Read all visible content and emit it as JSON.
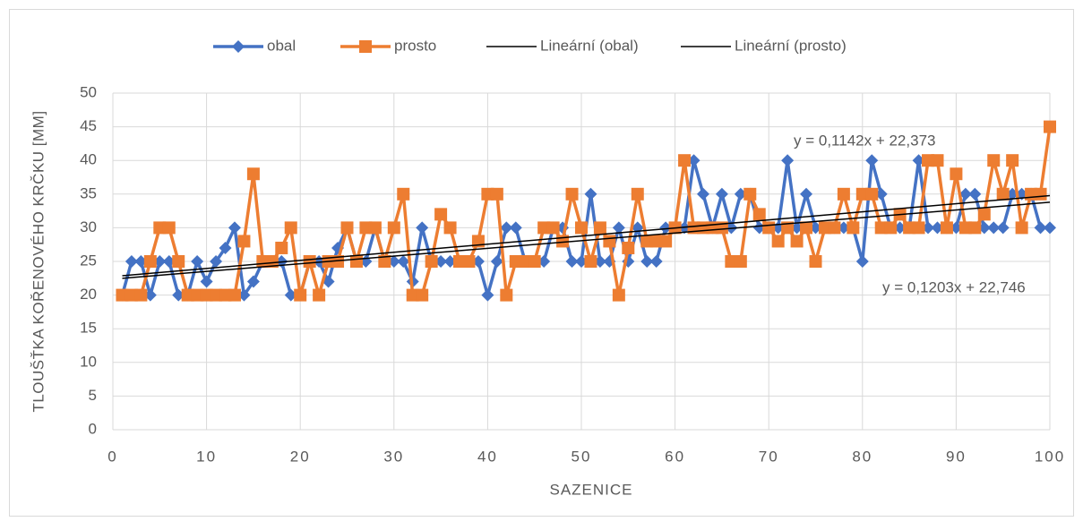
{
  "chart_data": {
    "type": "line",
    "y_label": "TLOUŠŤKA KOŘENOVÉHO KRČKU [MM]",
    "x_label": "SAZENICE",
    "x": [
      1,
      2,
      3,
      4,
      5,
      6,
      7,
      8,
      9,
      10,
      11,
      12,
      13,
      14,
      15,
      16,
      17,
      18,
      19,
      20,
      21,
      22,
      23,
      24,
      25,
      26,
      27,
      28,
      29,
      30,
      31,
      32,
      33,
      34,
      35,
      36,
      37,
      38,
      39,
      40,
      41,
      42,
      43,
      44,
      45,
      46,
      47,
      48,
      49,
      50,
      51,
      52,
      53,
      54,
      55,
      56,
      57,
      58,
      59,
      60,
      61,
      62,
      63,
      64,
      65,
      66,
      67,
      68,
      69,
      70,
      71,
      72,
      73,
      74,
      75,
      76,
      77,
      78,
      79,
      80,
      81,
      82,
      83,
      84,
      85,
      86,
      87,
      88,
      89,
      90,
      91,
      92,
      93,
      94,
      95,
      96,
      97,
      98,
      99,
      100
    ],
    "series": [
      {
        "name": "obal",
        "color": "#4472c4",
        "marker": "diamond",
        "values": [
          20,
          25,
          25,
          20,
          25,
          25,
          20,
          20,
          25,
          22,
          25,
          27,
          30,
          20,
          22,
          25,
          25,
          25,
          20,
          20,
          25,
          25,
          22,
          27,
          30,
          25,
          25,
          30,
          25,
          25,
          25,
          22,
          30,
          25,
          25,
          25,
          25,
          25,
          25,
          20,
          25,
          30,
          30,
          25,
          25,
          25,
          30,
          30,
          25,
          25,
          35,
          25,
          25,
          30,
          25,
          30,
          25,
          25,
          30,
          30,
          30,
          40,
          35,
          30,
          35,
          30,
          35,
          35,
          30,
          30,
          30,
          40,
          30,
          35,
          30,
          30,
          30,
          30,
          30,
          25,
          40,
          35,
          30,
          30,
          30,
          40,
          30,
          30,
          30,
          30,
          35,
          35,
          30,
          30,
          30,
          35,
          35,
          35,
          30,
          30
        ]
      },
      {
        "name": "prosto",
        "color": "#ed7d31",
        "marker": "square",
        "values": [
          20,
          20,
          20,
          25,
          30,
          30,
          25,
          20,
          20,
          20,
          20,
          20,
          20,
          28,
          38,
          25,
          25,
          27,
          30,
          20,
          25,
          20,
          25,
          25,
          30,
          25,
          30,
          30,
          25,
          30,
          35,
          20,
          20,
          25,
          32,
          30,
          25,
          25,
          28,
          35,
          35,
          20,
          25,
          25,
          25,
          30,
          30,
          28,
          35,
          30,
          25,
          30,
          28,
          20,
          27,
          35,
          28,
          28,
          28,
          30,
          40,
          30,
          30,
          30,
          30,
          25,
          25,
          35,
          32,
          30,
          28,
          30,
          28,
          30,
          25,
          30,
          30,
          35,
          30,
          35,
          35,
          30,
          30,
          32,
          30,
          30,
          40,
          40,
          30,
          38,
          30,
          30,
          32,
          40,
          35,
          40,
          30,
          35,
          35,
          45
        ]
      }
    ],
    "trendlines": [
      {
        "name": "Lineární (obal)",
        "color": "#000000",
        "x": [
          1,
          100
        ],
        "values": [
          22.87,
          34.78
        ]
      },
      {
        "name": "Lineární (prosto)",
        "color": "#000000",
        "x": [
          1,
          100
        ],
        "values": [
          22.49,
          33.79
        ]
      }
    ],
    "annotations": [
      "y = 0,1142x + 22,373",
      "y = 0,1203x + 22,746"
    ],
    "xlim": [
      0,
      100
    ],
    "xticks": [
      0,
      10,
      20,
      30,
      40,
      50,
      60,
      70,
      80,
      90,
      100
    ],
    "ylim": [
      0,
      50
    ],
    "yticks": [
      0,
      5,
      10,
      15,
      20,
      25,
      30,
      35,
      40,
      45,
      50
    ],
    "grid": true
  }
}
